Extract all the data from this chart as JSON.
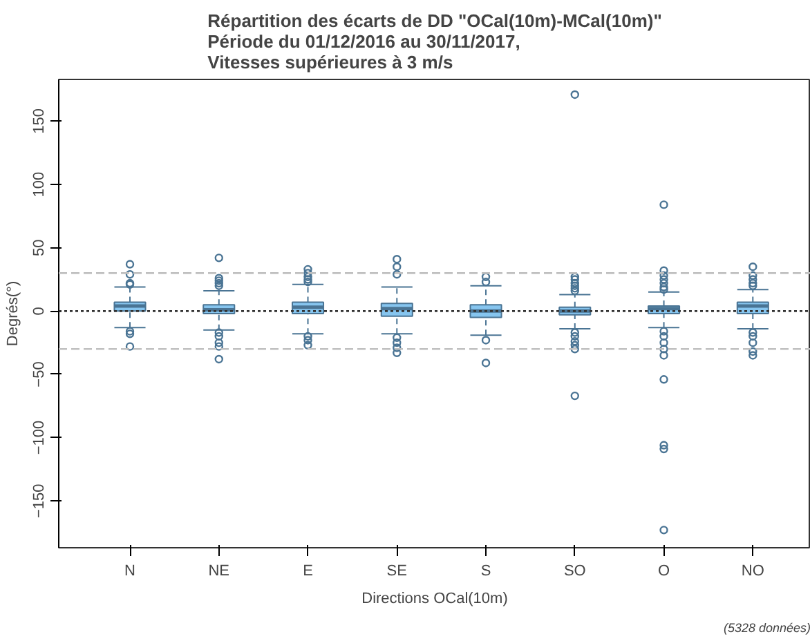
{
  "chart_data": {
    "type": "box",
    "title": "Répartition des écarts de DD \"OCal(10m)-MCal(10m)\"\nPériode du 01/12/2016 au 30/11/2017,\nVitesses supérieures à 3 m/s",
    "xlabel": "Directions OCal(10m)",
    "ylabel": "Degrés(°)",
    "annotations": [
      "(5328 données)"
    ],
    "categories": [
      "N",
      "NE",
      "E",
      "SE",
      "S",
      "SO",
      "O",
      "NO"
    ],
    "color": "#86c5ef",
    "ylim": [
      -187,
      183
    ],
    "yticks": [
      -150,
      -100,
      -50,
      0,
      50,
      100,
      150
    ],
    "grid": false,
    "boxes": [
      {
        "low": -13,
        "q1": 0,
        "median": 4,
        "q3": 7,
        "high": 19,
        "outliers": [
          37,
          29,
          22,
          21,
          -16,
          -18,
          -28
        ]
      },
      {
        "low": -15,
        "q1": -2,
        "median": 1,
        "q3": 5,
        "high": 16,
        "outliers": [
          42,
          26,
          24,
          22,
          20,
          -17,
          -20,
          -25,
          -28,
          -38
        ]
      },
      {
        "low": -18,
        "q1": -2,
        "median": 3,
        "q3": 7,
        "high": 21,
        "outliers": [
          33,
          30,
          27,
          25,
          23,
          -20,
          -23,
          -27
        ]
      },
      {
        "low": -18,
        "q1": -4,
        "median": 2,
        "q3": 6,
        "high": 19,
        "outliers": [
          41,
          35,
          29,
          -21,
          -25,
          -29,
          -33
        ]
      },
      {
        "low": -19,
        "q1": -5,
        "median": 0,
        "q3": 5,
        "high": 20,
        "outliers": [
          27,
          23,
          -23,
          -41
        ]
      },
      {
        "low": -14,
        "q1": -3,
        "median": 0,
        "q3": 3,
        "high": 13,
        "outliers": [
          171,
          27,
          25,
          22,
          20,
          18,
          16,
          -17,
          -20,
          -24,
          -27,
          -30,
          -67
        ]
      },
      {
        "low": -13,
        "q1": -2,
        "median": 2,
        "q3": 4,
        "high": 15,
        "outliers": [
          84,
          32,
          28,
          25,
          22,
          19,
          17,
          -16,
          -20,
          -25,
          -30,
          -35,
          -54,
          -106,
          -109,
          -173
        ]
      },
      {
        "low": -14,
        "q1": -2,
        "median": 4,
        "q3": 7,
        "high": 17,
        "outliers": [
          35,
          28,
          25,
          22,
          20,
          -17,
          -20,
          -25,
          -32,
          -35
        ]
      }
    ],
    "ref_lines": [
      {
        "axis": "y",
        "value": 30,
        "label": null,
        "color": "#c0c0c0",
        "line_style": "dashed"
      },
      {
        "axis": "y",
        "value": -30,
        "label": null,
        "color": "#c0c0c0",
        "line_style": "dashed"
      },
      {
        "axis": "y",
        "value": 0,
        "label": null,
        "color": "#333333",
        "line_style": "dotted"
      }
    ]
  }
}
